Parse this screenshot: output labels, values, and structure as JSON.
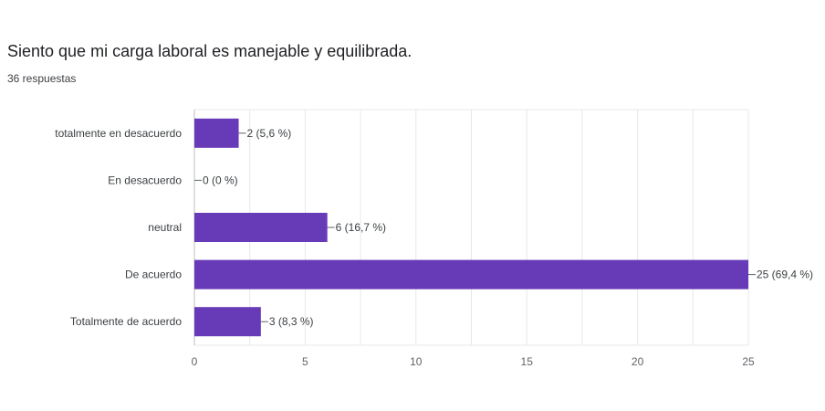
{
  "question": {
    "title": "Siento que mi carga laboral es manejable y equilibrada.",
    "responses": "36 respuestas"
  },
  "colors": {
    "bar": "#673ab7",
    "grid": "#e8e8e8",
    "axis": "#5f6368"
  },
  "chart_data": {
    "type": "bar",
    "orientation": "horizontal",
    "categories": [
      "totalmente en desacuerdo",
      "En desacuerdo",
      "neutral",
      "De acuerdo",
      "Totalmente de acuerdo"
    ],
    "values": [
      2,
      0,
      6,
      25,
      3
    ],
    "data_labels": [
      "2 (5,6 %)",
      "0 (0 %)",
      "6 (16,7 %)",
      "25 (69,4 %)",
      "3 (8,3 %)"
    ],
    "xticks": [
      "0",
      "5",
      "10",
      "15",
      "20",
      "25"
    ],
    "xlim": [
      0,
      25
    ],
    "grid": true,
    "legend": "none"
  }
}
